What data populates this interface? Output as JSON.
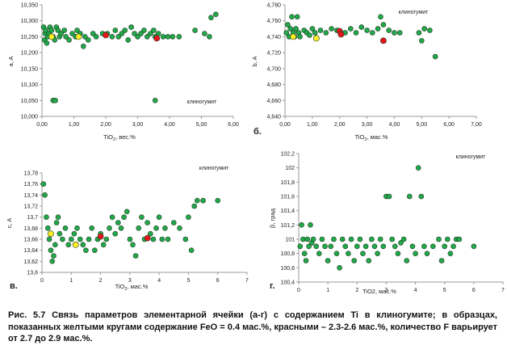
{
  "caption": "Рис. 5.7 Связь параметров элементарной ячейки (а-г) с содержанием Ti в клиногумите; в образцах, показанных желтыми кругами содержание FeO = 0.4 мас.%, красными – 2.3-2.6 мас.%, количество F варьирует от 2.7 до 2.9 мас.%.",
  "colors": {
    "green": "#22a84a",
    "yellow": "#ffee22",
    "red": "#e8141c",
    "axis": "#999999"
  },
  "chart_data": [
    {
      "type": "scatter",
      "panel_label": "",
      "annotation": "клиногумит",
      "xlabel": "TiO",
      "xlabel_sub": "2",
      "xlabel_suffix": ", вес.%",
      "ylabel": "a, A",
      "xlim": [
        0,
        6
      ],
      "ylim": [
        10.0,
        10.35
      ],
      "xticks": [
        "0,00",
        "1,00",
        "2,00",
        "3,00",
        "4,00",
        "5,00",
        "6,00"
      ],
      "yticks": [
        "10,000",
        "10,050",
        "10,100",
        "10,150",
        "10,200",
        "10,250",
        "10,300",
        "10,350"
      ],
      "series": [
        {
          "color": "green",
          "points": [
            [
              0.05,
              10.28
            ],
            [
              0.08,
              10.24
            ],
            [
              0.1,
              10.26
            ],
            [
              0.12,
              10.27
            ],
            [
              0.15,
              10.23
            ],
            [
              0.18,
              10.25
            ],
            [
              0.22,
              10.26
            ],
            [
              0.25,
              10.28
            ],
            [
              0.3,
              10.27
            ],
            [
              0.35,
              10.25
            ],
            [
              0.4,
              10.24
            ],
            [
              0.45,
              10.28
            ],
            [
              0.5,
              10.27
            ],
            [
              0.55,
              10.25
            ],
            [
              0.6,
              10.26
            ],
            [
              0.7,
              10.27
            ],
            [
              0.75,
              10.25
            ],
            [
              0.85,
              10.24
            ],
            [
              0.95,
              10.26
            ],
            [
              1.05,
              10.25
            ],
            [
              1.1,
              10.27
            ],
            [
              1.2,
              10.26
            ],
            [
              1.3,
              10.22
            ],
            [
              1.35,
              10.25
            ],
            [
              1.45,
              10.24
            ],
            [
              1.6,
              10.26
            ],
            [
              1.7,
              10.25
            ],
            [
              1.9,
              10.26
            ],
            [
              2.05,
              10.26
            ],
            [
              2.2,
              10.25
            ],
            [
              2.3,
              10.27
            ],
            [
              2.4,
              10.25
            ],
            [
              2.5,
              10.26
            ],
            [
              2.6,
              10.27
            ],
            [
              2.7,
              10.24
            ],
            [
              2.8,
              10.28
            ],
            [
              2.9,
              10.26
            ],
            [
              3.0,
              10.25
            ],
            [
              3.1,
              10.26
            ],
            [
              3.2,
              10.27
            ],
            [
              3.3,
              10.25
            ],
            [
              3.4,
              10.26
            ],
            [
              3.5,
              10.27
            ],
            [
              3.55,
              10.25
            ],
            [
              3.65,
              10.26
            ],
            [
              3.8,
              10.25
            ],
            [
              3.95,
              10.25
            ],
            [
              4.1,
              10.25
            ],
            [
              4.3,
              10.25
            ],
            [
              4.8,
              10.27
            ],
            [
              5.1,
              10.26
            ],
            [
              5.25,
              10.25
            ],
            [
              5.3,
              10.31
            ],
            [
              5.45,
              10.32
            ],
            [
              0.35,
              10.05
            ],
            [
              0.42,
              10.05
            ],
            [
              3.55,
              10.05
            ]
          ]
        },
        {
          "color": "yellow",
          "points": [
            [
              0.3,
              10.25
            ],
            [
              1.15,
              10.25
            ]
          ]
        },
        {
          "color": "red",
          "points": [
            [
              2.0,
              10.255
            ],
            [
              3.6,
              10.245
            ]
          ]
        }
      ]
    },
    {
      "type": "scatter",
      "panel_label": "б.",
      "annotation": "клиногумит",
      "xlabel": "TiO",
      "xlabel_sub": "2",
      "xlabel_suffix": ", мас.%",
      "ylabel": "b, A",
      "xlim": [
        0,
        7
      ],
      "ylim": [
        4.64,
        4.78
      ],
      "xticks": [
        "0,00",
        "1,00",
        "2,00",
        "3,00",
        "4,00",
        "5,00",
        "6,00",
        "7,00"
      ],
      "yticks": [
        "4,640",
        "4,660",
        "4,680",
        "4,700",
        "4,720",
        "4,740",
        "4,760",
        "4,780"
      ],
      "series": [
        {
          "color": "green",
          "points": [
            [
              0.05,
              4.745
            ],
            [
              0.1,
              4.755
            ],
            [
              0.15,
              4.74
            ],
            [
              0.2,
              4.75
            ],
            [
              0.25,
              4.765
            ],
            [
              0.3,
              4.745
            ],
            [
              0.35,
              4.74
            ],
            [
              0.4,
              4.75
            ],
            [
              0.45,
              4.765
            ],
            [
              0.5,
              4.745
            ],
            [
              0.55,
              4.74
            ],
            [
              0.7,
              4.748
            ],
            [
              0.8,
              4.745
            ],
            [
              0.9,
              4.742
            ],
            [
              1.0,
              4.75
            ],
            [
              1.1,
              4.745
            ],
            [
              1.3,
              4.748
            ],
            [
              1.5,
              4.745
            ],
            [
              1.7,
              4.75
            ],
            [
              1.9,
              4.748
            ],
            [
              2.2,
              4.745
            ],
            [
              2.4,
              4.75
            ],
            [
              2.6,
              4.745
            ],
            [
              2.8,
              4.752
            ],
            [
              3.0,
              4.748
            ],
            [
              3.2,
              4.745
            ],
            [
              3.4,
              4.75
            ],
            [
              3.5,
              4.765
            ],
            [
              3.6,
              4.755
            ],
            [
              3.8,
              4.748
            ],
            [
              4.0,
              4.745
            ],
            [
              4.2,
              4.745
            ],
            [
              4.9,
              4.745
            ],
            [
              5.0,
              4.735
            ],
            [
              5.1,
              4.75
            ],
            [
              5.3,
              4.748
            ],
            [
              5.5,
              4.715
            ]
          ]
        },
        {
          "color": "yellow",
          "points": [
            [
              0.3,
              4.74
            ],
            [
              1.15,
              4.738
            ]
          ]
        },
        {
          "color": "red",
          "points": [
            [
              2.0,
              4.747
            ],
            [
              2.05,
              4.743
            ],
            [
              3.6,
              4.735
            ]
          ]
        }
      ]
    },
    {
      "type": "scatter",
      "panel_label": "в.",
      "annotation": "клиногумит",
      "xlabel": "TiO",
      "xlabel_sub": "2",
      "xlabel_suffix": ", мас.%",
      "ylabel": "c, A",
      "xlim": [
        0,
        7
      ],
      "ylim": [
        13.6,
        13.78
      ],
      "xticks": [
        "0",
        "1",
        "2",
        "3",
        "4",
        "5",
        "6",
        "7"
      ],
      "yticks": [
        "13,6",
        "13,62",
        "13,64",
        "13,66",
        "13,68",
        "13,7",
        "13,72",
        "13,74",
        "13,76",
        "13,78"
      ],
      "series": [
        {
          "color": "green",
          "points": [
            [
              0.05,
              13.76
            ],
            [
              0.1,
              13.74
            ],
            [
              0.15,
              13.7
            ],
            [
              0.2,
              13.68
            ],
            [
              0.25,
              13.66
            ],
            [
              0.3,
              13.64
            ],
            [
              0.35,
              13.62
            ],
            [
              0.4,
              13.63
            ],
            [
              0.45,
              13.65
            ],
            [
              0.5,
              13.69
            ],
            [
              0.55,
              13.7
            ],
            [
              0.6,
              13.67
            ],
            [
              0.7,
              13.66
            ],
            [
              0.8,
              13.68
            ],
            [
              0.9,
              13.65
            ],
            [
              1.0,
              13.66
            ],
            [
              1.1,
              13.67
            ],
            [
              1.2,
              13.68
            ],
            [
              1.3,
              13.66
            ],
            [
              1.4,
              13.65
            ],
            [
              1.5,
              13.64
            ],
            [
              1.6,
              13.66
            ],
            [
              1.7,
              13.68
            ],
            [
              1.8,
              13.64
            ],
            [
              1.9,
              13.66
            ],
            [
              2.0,
              13.67
            ],
            [
              2.1,
              13.65
            ],
            [
              2.2,
              13.66
            ],
            [
              2.3,
              13.68
            ],
            [
              2.4,
              13.7
            ],
            [
              2.5,
              13.67
            ],
            [
              2.6,
              13.69
            ],
            [
              2.7,
              13.68
            ],
            [
              2.8,
              13.7
            ],
            [
              2.9,
              13.71
            ],
            [
              3.0,
              13.66
            ],
            [
              3.1,
              13.65
            ],
            [
              3.2,
              13.63
            ],
            [
              3.3,
              13.68
            ],
            [
              3.4,
              13.7
            ],
            [
              3.5,
              13.66
            ],
            [
              3.6,
              13.69
            ],
            [
              3.7,
              13.67
            ],
            [
              3.8,
              13.66
            ],
            [
              3.9,
              13.68
            ],
            [
              4.0,
              13.7
            ],
            [
              4.1,
              13.66
            ],
            [
              4.2,
              13.68
            ],
            [
              4.3,
              13.66
            ],
            [
              4.5,
              13.69
            ],
            [
              4.7,
              13.68
            ],
            [
              4.9,
              13.66
            ],
            [
              5.0,
              13.7
            ],
            [
              5.1,
              13.64
            ],
            [
              5.2,
              13.72
            ],
            [
              5.3,
              13.73
            ],
            [
              5.5,
              13.73
            ],
            [
              6.0,
              13.73
            ]
          ]
        },
        {
          "color": "yellow",
          "points": [
            [
              0.3,
              13.67
            ],
            [
              1.15,
              13.65
            ]
          ]
        },
        {
          "color": "red",
          "points": [
            [
              2.0,
              13.665
            ],
            [
              3.6,
              13.662
            ]
          ]
        }
      ]
    },
    {
      "type": "scatter",
      "panel_label": "г.",
      "annotation": "клиногумит",
      "xlabel": "TiO2, мас.%",
      "xlabel_sub": "",
      "xlabel_suffix": "",
      "ylabel": "β, град",
      "xlim": [
        0,
        7
      ],
      "ylim": [
        100.4,
        102.2
      ],
      "xticks": [
        "0",
        "1",
        "2",
        "3",
        "4",
        "5",
        "6",
        "7"
      ],
      "yticks": [
        "100,4",
        "100,6",
        "100,8",
        "101",
        "101,2",
        "101,4",
        "101,6",
        "101,8",
        "102",
        "102,2"
      ],
      "series": [
        {
          "color": "green",
          "points": [
            [
              0.05,
              100.9
            ],
            [
              0.1,
              101.2
            ],
            [
              0.15,
              101.0
            ],
            [
              0.2,
              100.8
            ],
            [
              0.25,
              100.7
            ],
            [
              0.3,
              101.0
            ],
            [
              0.35,
              100.9
            ],
            [
              0.4,
              101.2
            ],
            [
              0.45,
              100.95
            ],
            [
              0.5,
              101.0
            ],
            [
              0.6,
              100.9
            ],
            [
              0.7,
              100.8
            ],
            [
              0.8,
              101.0
            ],
            [
              0.9,
              100.9
            ],
            [
              1.0,
              100.7
            ],
            [
              1.1,
              100.9
            ],
            [
              1.2,
              101.0
            ],
            [
              1.3,
              100.8
            ],
            [
              1.4,
              100.6
            ],
            [
              1.5,
              101.0
            ],
            [
              1.6,
              100.9
            ],
            [
              1.7,
              100.8
            ],
            [
              1.8,
              101.0
            ],
            [
              1.9,
              100.7
            ],
            [
              2.0,
              100.9
            ],
            [
              2.1,
              101.0
            ],
            [
              2.2,
              100.8
            ],
            [
              2.3,
              100.9
            ],
            [
              2.4,
              100.7
            ],
            [
              2.5,
              101.0
            ],
            [
              2.6,
              100.9
            ],
            [
              2.7,
              100.8
            ],
            [
              2.8,
              101.0
            ],
            [
              2.9,
              100.9
            ],
            [
              3.0,
              101.6
            ],
            [
              3.1,
              101.6
            ],
            [
              3.2,
              101.0
            ],
            [
              3.3,
              100.9
            ],
            [
              3.4,
              100.8
            ],
            [
              3.5,
              100.95
            ],
            [
              3.6,
              101.0
            ],
            [
              3.7,
              100.7
            ],
            [
              3.8,
              101.6
            ],
            [
              3.9,
              100.9
            ],
            [
              4.0,
              100.8
            ],
            [
              4.1,
              102.0
            ],
            [
              4.2,
              101.6
            ],
            [
              4.3,
              100.9
            ],
            [
              4.4,
              100.8
            ],
            [
              4.6,
              100.9
            ],
            [
              4.8,
              101.0
            ],
            [
              4.9,
              100.7
            ],
            [
              5.0,
              100.9
            ],
            [
              5.1,
              101.0
            ],
            [
              5.2,
              100.8
            ],
            [
              5.3,
              100.9
            ],
            [
              5.4,
              101.0
            ],
            [
              5.5,
              101.0
            ],
            [
              6.0,
              100.9
            ]
          ]
        }
      ]
    }
  ]
}
